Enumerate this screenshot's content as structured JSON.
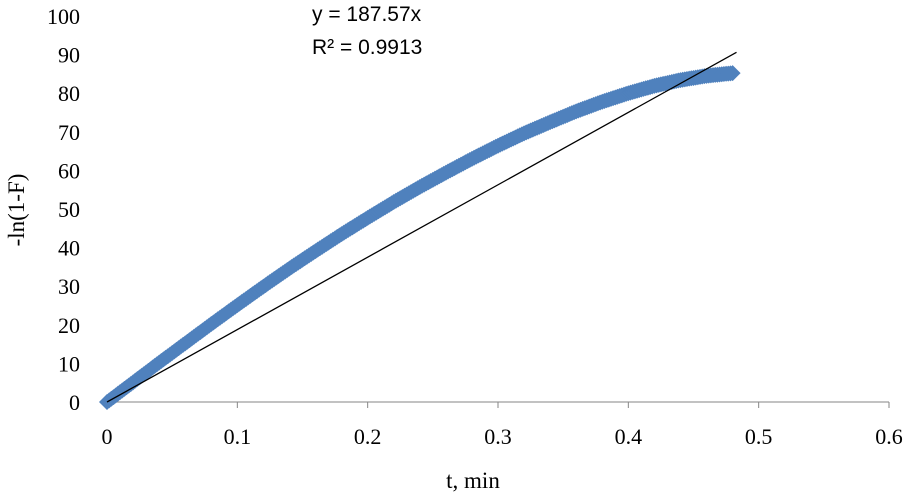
{
  "chart_data": {
    "type": "scatter",
    "xlabel": "t, min",
    "ylabel": "-ln(1-F)",
    "xlim": [
      0,
      0.6
    ],
    "ylim": [
      0,
      100
    ],
    "x_ticks": [
      "0",
      "0.1",
      "0.2",
      "0.3",
      "0.4",
      "0.5",
      "0.6"
    ],
    "y_ticks": [
      "0",
      "10",
      "20",
      "30",
      "40",
      "50",
      "60",
      "70",
      "80",
      "90",
      "100"
    ],
    "grid": false,
    "legend": "none",
    "marker": "diamond",
    "marker_color": "#4f81bd",
    "series": [
      {
        "x": [
          0,
          0.02,
          0.04,
          0.06,
          0.08,
          0.1,
          0.12,
          0.14,
          0.16,
          0.18,
          0.2,
          0.22,
          0.24,
          0.26,
          0.28,
          0.3,
          0.32,
          0.34,
          0.36,
          0.38,
          0.4,
          0.42,
          0.44,
          0.46,
          0.48
        ],
        "y": [
          0,
          5.1,
          10.2,
          15.2,
          20.2,
          25.1,
          29.9,
          34.6,
          39.1,
          43.5,
          47.7,
          51.8,
          55.7,
          59.4,
          63.0,
          66.4,
          69.6,
          72.5,
          75.3,
          77.8,
          80.0,
          81.9,
          83.4,
          84.5,
          85.2
        ]
      }
    ],
    "trendline": {
      "slope": 187.57,
      "x_range": [
        0,
        0.483
      ],
      "color": "#000000",
      "equation": "y = 187.57x",
      "r_squared": "R² = 0.9913"
    }
  }
}
